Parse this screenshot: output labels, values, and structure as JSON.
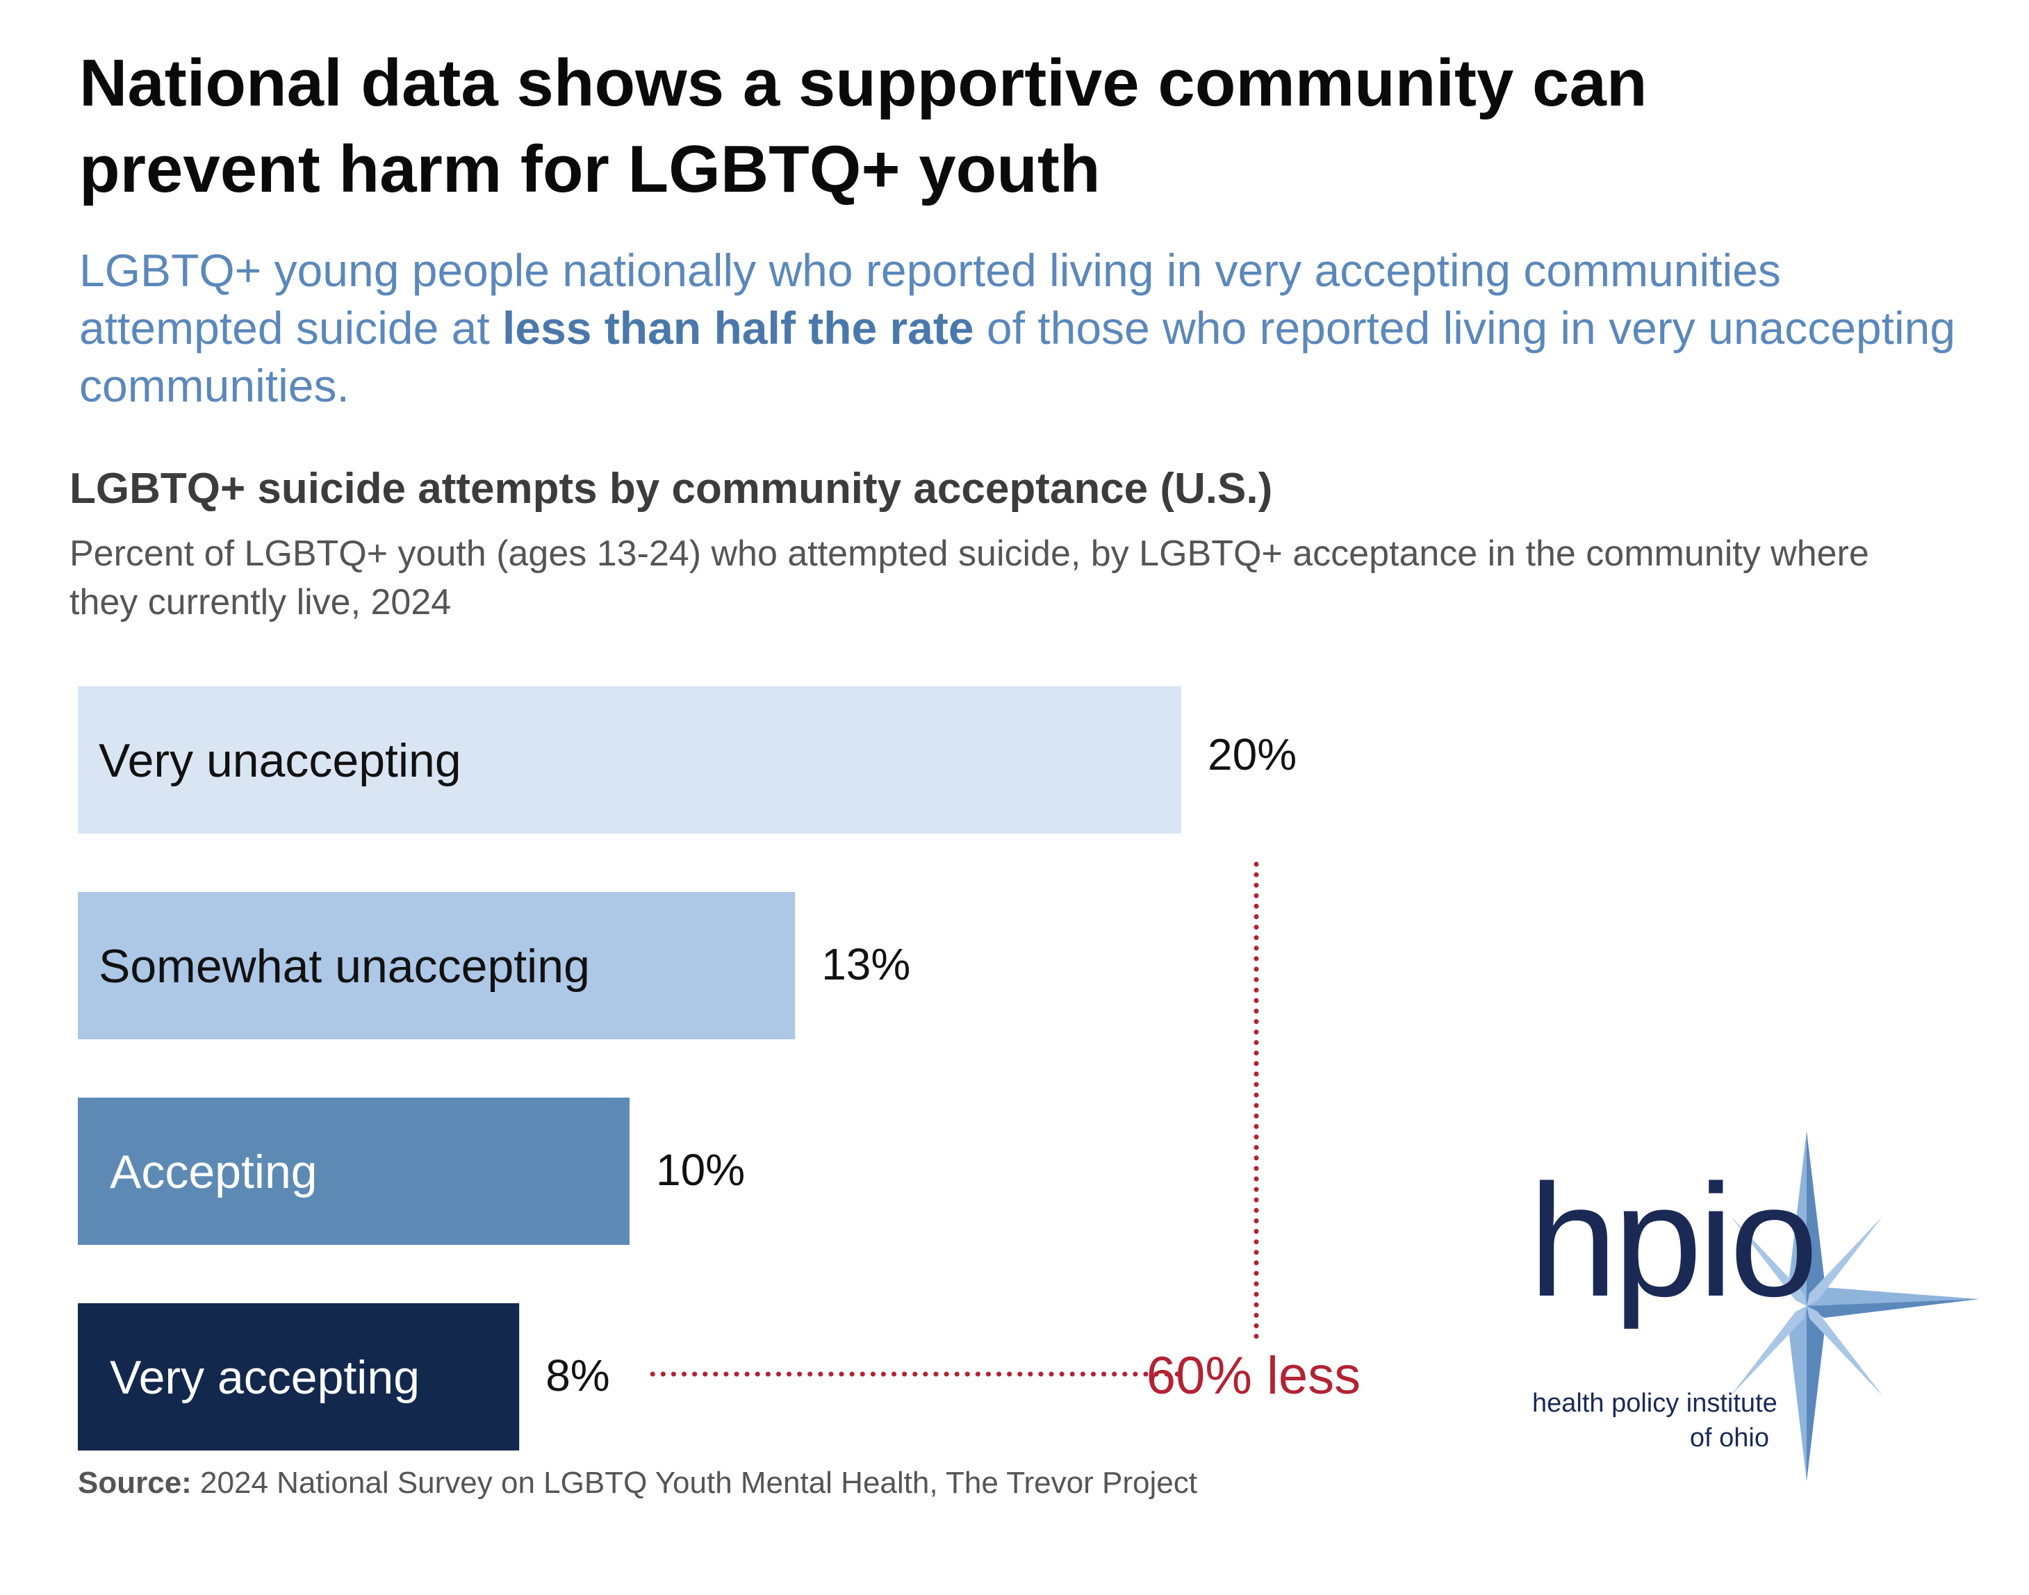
{
  "headline": "National data shows a supportive community can prevent harm for LGBTQ+ youth",
  "lede": {
    "before": "LGBTQ+ young people nationally who reported living in very accepting communities attempted suicide at ",
    "emphasis": "less than half the rate",
    "after": " of those who reported living in very unaccepting communities."
  },
  "colors": {
    "accent": "#b22333",
    "headline": "#0a0a0a",
    "lede": "#5b88bb"
  },
  "chart_data": {
    "type": "bar",
    "orientation": "horizontal",
    "title": "LGBTQ+ suicide attempts by community acceptance (U.S.)",
    "subtitle": "Percent of LGBTQ+ youth (ages 13-24) who attempted suicide, by LGBTQ+ acceptance in the community where they currently live, 2024",
    "categories": [
      "Very unaccepting",
      "Somewhat unaccepting",
      "Accepting",
      "Very accepting"
    ],
    "values": [
      20,
      13,
      10,
      8
    ],
    "value_labels": [
      "20%",
      "13%",
      "10%",
      "8%"
    ],
    "bar_colors": [
      "#dae5f3",
      "#adc7e6",
      "#5d8ab5",
      "#13284d"
    ],
    "label_colors": [
      "#111111",
      "#111111",
      "#ffffff",
      "#ffffff"
    ],
    "xlim": [
      0,
      20
    ],
    "grid": false,
    "annotation": "60% less"
  },
  "source": {
    "label": "Source:",
    "text": " 2024 National Survey on LGBTQ Youth Mental Health, The Trevor Project"
  },
  "logo": {
    "wordmark": "hpio",
    "line1": "health policy institute",
    "line2": "of ohio",
    "icon": "compass-star-icon"
  }
}
